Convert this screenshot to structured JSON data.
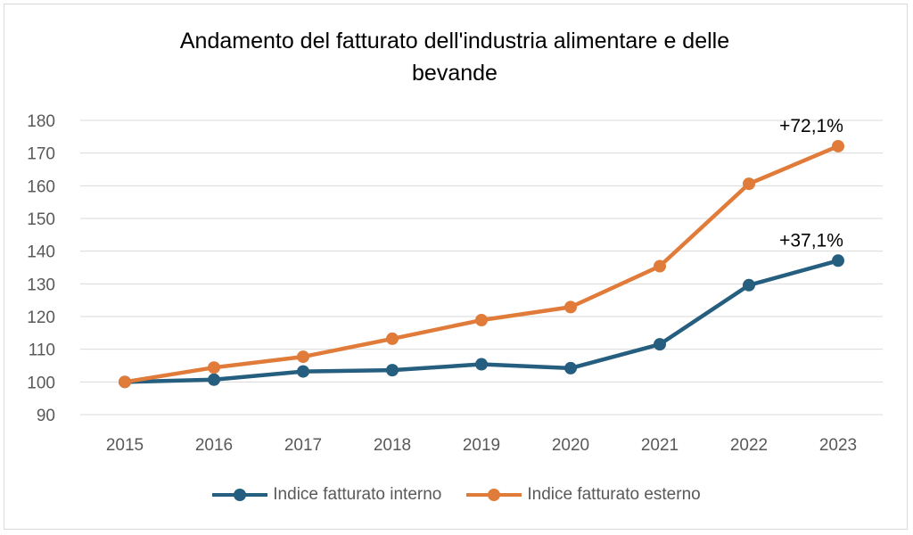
{
  "chart_data": {
    "type": "line",
    "title": "Andamento del fatturato dell'industria alimentare e delle bevande",
    "title_lines": [
      "Andamento del fatturato dell'industria alimentare e delle",
      "bevande"
    ],
    "categories": [
      "2015",
      "2016",
      "2017",
      "2018",
      "2019",
      "2020",
      "2021",
      "2022",
      "2023"
    ],
    "ylim": [
      90,
      180
    ],
    "yticks": [
      90,
      100,
      110,
      120,
      130,
      140,
      150,
      160,
      170,
      180
    ],
    "grid": true,
    "legend_position": "bottom",
    "series": [
      {
        "name": "Indice fatturato interno",
        "color": "#255e7e",
        "values": [
          100,
          100.7,
          103.2,
          103.6,
          105.4,
          104.2,
          111.5,
          129.6,
          137.1
        ],
        "end_label": "+37,1%"
      },
      {
        "name": "Indice fatturato esterno",
        "color": "#e07b39",
        "values": [
          100,
          104.4,
          107.7,
          113.2,
          118.9,
          122.9,
          135.4,
          160.6,
          172.1
        ],
        "end_label": "+72,1%"
      }
    ]
  }
}
